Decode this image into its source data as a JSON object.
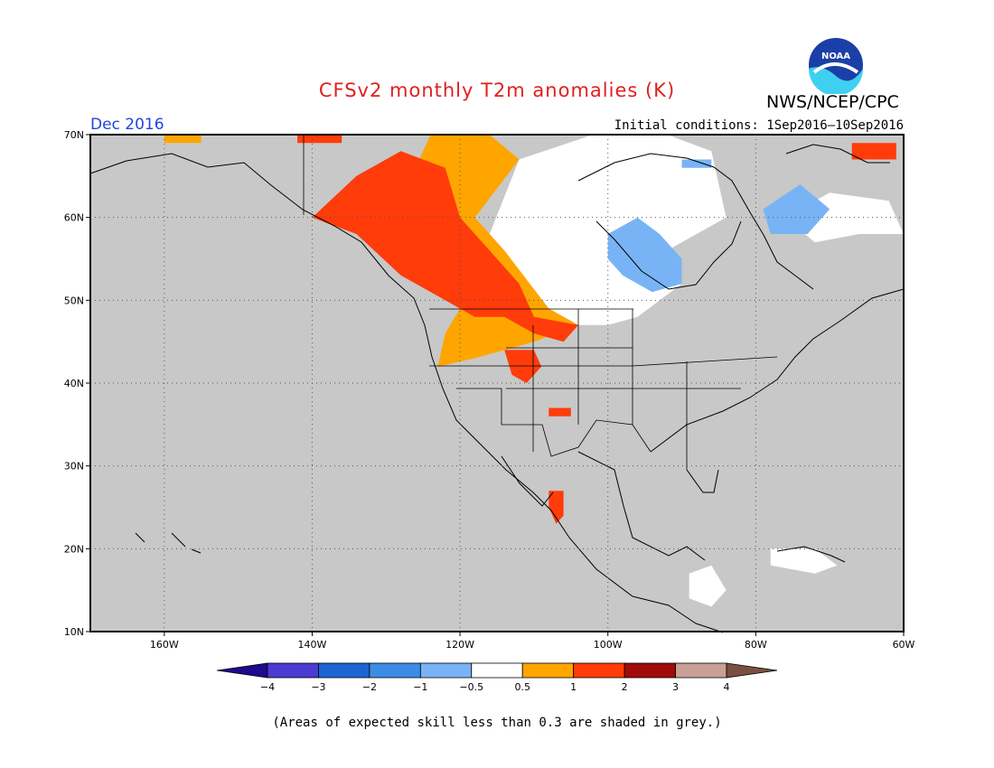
{
  "title": "CFSv2 monthly T2m anomalies (K)",
  "organization": "NWS/NCEP/CPC",
  "logo_text": "NOAA",
  "valid_month": "Dec 2016",
  "initial_conditions": "Initial conditions: 1Sep2016–10Sep2016",
  "footnote": "(Areas of expected skill less than 0.3 are shaded in grey.)",
  "map": {
    "lon_range": [
      -170,
      -60
    ],
    "lat_range": [
      10,
      70
    ],
    "background_color": "#c8c8c8",
    "lat_ticks": [
      {
        "lat": 70,
        "label": "70N"
      },
      {
        "lat": 60,
        "label": "60N"
      },
      {
        "lat": 50,
        "label": "50N"
      },
      {
        "lat": 40,
        "label": "40N"
      },
      {
        "lat": 30,
        "label": "30N"
      },
      {
        "lat": 20,
        "label": "20N"
      },
      {
        "lat": 10,
        "label": "10N"
      }
    ],
    "lon_ticks": [
      {
        "lon": -160,
        "label": "160W"
      },
      {
        "lon": -140,
        "label": "140W"
      },
      {
        "lon": -120,
        "label": "120W"
      },
      {
        "lon": -100,
        "label": "100W"
      },
      {
        "lon": -80,
        "label": "80W"
      },
      {
        "lon": -60,
        "label": "60W"
      }
    ]
  },
  "legend": {
    "colors": [
      "#1e0a8c",
      "#4b3bd2",
      "#1c64d2",
      "#3c8ce6",
      "#78b4f5",
      "#ffffff",
      "#ffa500",
      "#ff3c0a",
      "#a00a0a",
      "#c8a096",
      "#7a5040"
    ],
    "labels": [
      "−4",
      "−3",
      "−2",
      "−1",
      "−0.5",
      "0.5",
      "1",
      "2",
      "3",
      "4"
    ]
  },
  "anomaly_regions": [
    {
      "category": "near-normal",
      "color": "#ffffff",
      "polygon": [
        [
          -116,
          58
        ],
        [
          -112,
          67
        ],
        [
          -102,
          70
        ],
        [
          -92,
          70
        ],
        [
          -86,
          68
        ],
        [
          -84,
          60
        ],
        [
          -92,
          56
        ],
        [
          -90,
          52
        ],
        [
          -96,
          48
        ],
        [
          -100,
          47
        ],
        [
          -104,
          47
        ],
        [
          -108,
          49
        ],
        [
          -112,
          52
        ]
      ]
    },
    {
      "category": "near-normal",
      "color": "#ffffff",
      "polygon": [
        [
          -76,
          60
        ],
        [
          -70,
          63
        ],
        [
          -62,
          62
        ],
        [
          -60,
          58
        ],
        [
          -66,
          58
        ],
        [
          -72,
          57
        ]
      ]
    },
    {
      "category": "near-normal",
      "color": "#ffffff",
      "polygon": [
        [
          -89,
          17
        ],
        [
          -86,
          18
        ],
        [
          -84,
          15
        ],
        [
          -86,
          13
        ],
        [
          -89,
          14
        ]
      ]
    },
    {
      "category": "near-normal",
      "color": "#ffffff",
      "polygon": [
        [
          -78,
          20
        ],
        [
          -72,
          20
        ],
        [
          -69,
          18
        ],
        [
          -72,
          17
        ],
        [
          -78,
          18
        ]
      ]
    },
    {
      "category": "0.5 to 1",
      "color": "#ffa500",
      "polygon": [
        [
          -128,
          62
        ],
        [
          -124,
          70
        ],
        [
          -116,
          70
        ],
        [
          -112,
          67
        ],
        [
          -118,
          60
        ],
        [
          -114,
          56
        ],
        [
          -108,
          49
        ],
        [
          -104,
          47
        ],
        [
          -110,
          45
        ],
        [
          -118,
          43
        ],
        [
          -123,
          42
        ],
        [
          -122,
          46
        ],
        [
          -120,
          49
        ],
        [
          -126,
          56
        ]
      ]
    },
    {
      "category": "1 to 2",
      "color": "#ff3c0a",
      "polygon": [
        [
          -140,
          60
        ],
        [
          -134,
          65
        ],
        [
          -128,
          68
        ],
        [
          -122,
          66
        ],
        [
          -120,
          60
        ],
        [
          -116,
          56
        ],
        [
          -112,
          52
        ],
        [
          -110,
          48
        ],
        [
          -104,
          47
        ],
        [
          -106,
          45
        ],
        [
          -110,
          46
        ],
        [
          -114,
          48
        ],
        [
          -118,
          48
        ],
        [
          -122,
          50
        ],
        [
          -128,
          53
        ],
        [
          -134,
          58
        ]
      ]
    },
    {
      "category": "1 to 2",
      "color": "#ff3c0a",
      "polygon": [
        [
          -142,
          70
        ],
        [
          -136,
          70
        ],
        [
          -136,
          69
        ],
        [
          -142,
          69
        ]
      ]
    },
    {
      "category": "1 to 2",
      "color": "#ff3c0a",
      "polygon": [
        [
          -114,
          44
        ],
        [
          -110,
          44
        ],
        [
          -109,
          42
        ],
        [
          -111,
          40
        ],
        [
          -113,
          41
        ]
      ]
    },
    {
      "category": "1 to 2",
      "color": "#ff3c0a",
      "polygon": [
        [
          -108,
          37
        ],
        [
          -105,
          37
        ],
        [
          -105,
          36
        ],
        [
          -108,
          36
        ]
      ]
    },
    {
      "category": "1 to 2",
      "color": "#ff3c0a",
      "polygon": [
        [
          -108,
          27
        ],
        [
          -106,
          27
        ],
        [
          -106,
          24
        ],
        [
          -107,
          23
        ],
        [
          -108,
          25
        ]
      ]
    },
    {
      "category": "below normal -0.5 to -1",
      "color": "#78b4f5",
      "polygon": [
        [
          -100,
          58
        ],
        [
          -96,
          60
        ],
        [
          -93,
          58
        ],
        [
          -90,
          55
        ],
        [
          -90,
          52
        ],
        [
          -94,
          51
        ],
        [
          -98,
          53
        ],
        [
          -100,
          55
        ]
      ]
    },
    {
      "category": "below normal -0.5 to -1",
      "color": "#78b4f5",
      "polygon": [
        [
          -79,
          61
        ],
        [
          -74,
          64
        ],
        [
          -70,
          61
        ],
        [
          -73,
          58
        ],
        [
          -78,
          58
        ]
      ]
    },
    {
      "category": "below normal -0.5 to -1",
      "color": "#78b4f5",
      "polygon": [
        [
          -90,
          67
        ],
        [
          -86,
          67
        ],
        [
          -86,
          66
        ],
        [
          -90,
          66
        ]
      ]
    },
    {
      "category": "1 to 2",
      "color": "#ff3c0a",
      "polygon": [
        [
          -67,
          69
        ],
        [
          -61,
          69
        ],
        [
          -61,
          67
        ],
        [
          -67,
          67
        ]
      ]
    },
    {
      "category": "0.5 to 1",
      "color": "#ffa500",
      "polygon": [
        [
          -160,
          70
        ],
        [
          -155,
          70
        ],
        [
          -155,
          69
        ],
        [
          -160,
          69
        ]
      ]
    }
  ]
}
